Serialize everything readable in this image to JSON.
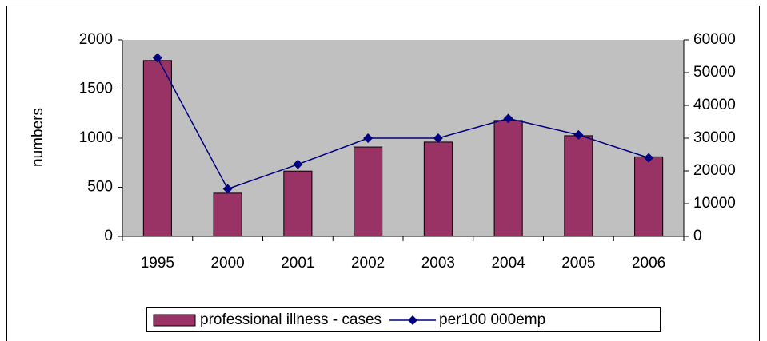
{
  "chart_data": {
    "type": "bar_line",
    "y_label": "numbers",
    "categories": [
      "1995",
      "2000",
      "2001",
      "2002",
      "2003",
      "2004",
      "2005",
      "2006"
    ],
    "series": [
      {
        "name": "professional illness - cases",
        "type": "bar",
        "color": "#993366",
        "values": [
          1790,
          440,
          665,
          910,
          960,
          1180,
          1025,
          810
        ]
      },
      {
        "name": "per100 000emp",
        "type": "line",
        "color": "#000080",
        "axis": "y2",
        "values": [
          54500,
          14500,
          22000,
          30000,
          30000,
          36000,
          31000,
          24000
        ]
      }
    ],
    "ylim": [
      0,
      2000
    ],
    "yticks": [
      0,
      500,
      1000,
      1500,
      2000
    ],
    "y2lim": [
      0,
      60000
    ],
    "y2ticks": [
      0,
      10000,
      20000,
      30000,
      40000,
      50000,
      60000
    ],
    "plot_background": "#c0c0c0",
    "legend": "bottom"
  }
}
